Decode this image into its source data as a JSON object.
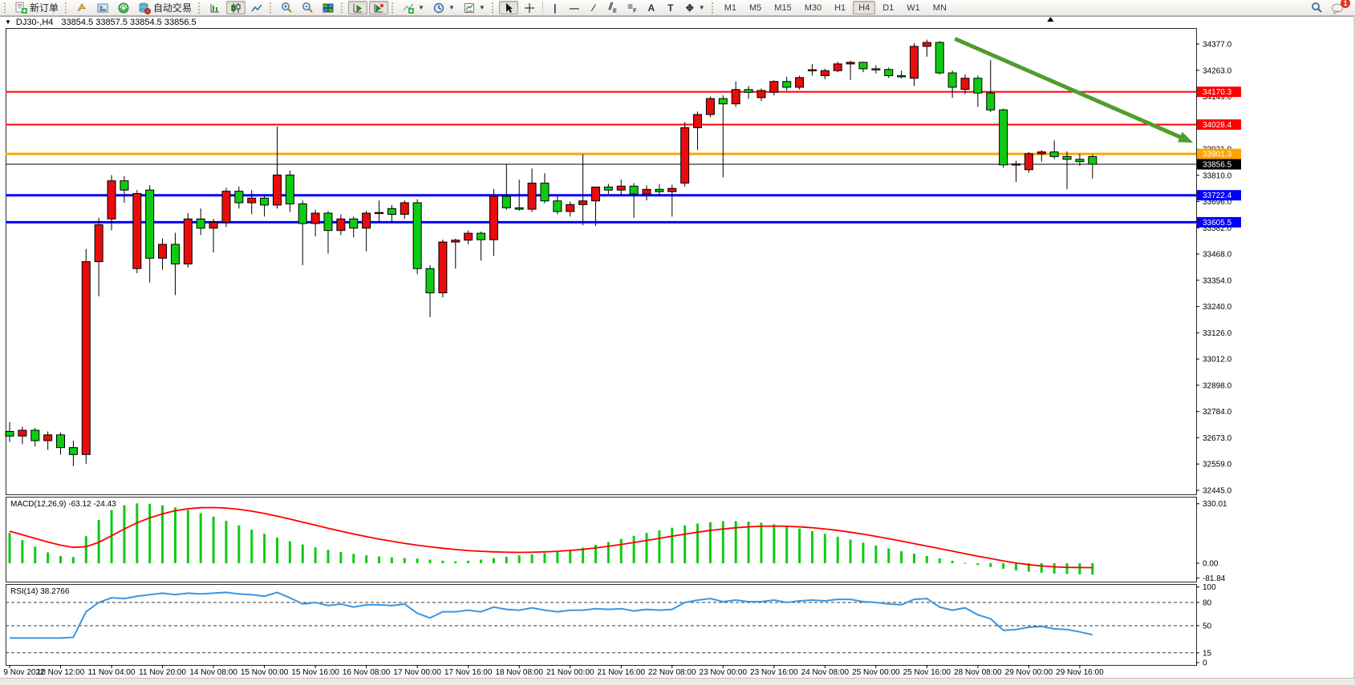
{
  "toolbar": {
    "new_order_label": "新订单",
    "autotrade_label": "自动交易",
    "timeframes": [
      "M1",
      "M5",
      "M15",
      "M30",
      "H1",
      "H4",
      "D1",
      "W1",
      "MN"
    ],
    "active_timeframe": "H4",
    "notification_count": "1",
    "icon_names": [
      "new-order-icon",
      "launcher-icon",
      "terminal-icon",
      "signal-icon",
      "autotrade-icon",
      "bar-chart-icon",
      "candlestick-chart-icon",
      "line-chart-icon",
      "zoom-in-icon",
      "zoom-out-icon",
      "tile-windows-icon",
      "auto-scroll-icon",
      "chart-shift-icon",
      "indicators-icon",
      "periods-icon",
      "templates-icon",
      "cursor-icon",
      "crosshair-icon",
      "vertical-line-icon",
      "horizontal-line-icon",
      "trendline-icon",
      "channel-icon",
      "fibonacci-icon",
      "text-icon",
      "label-icon",
      "arrows-icon",
      "search-icon",
      "chat-bubble-icon"
    ]
  },
  "title_bar": {
    "dropdown_icon": "▼",
    "symbol_period": "DJ30-,H4",
    "ohlc": "33854.5 33857.5 33854.5 33856.5"
  },
  "chart_data": {
    "type": "candlestick",
    "symbol": "DJ30-",
    "timeframe": "H4",
    "current_ohlc": {
      "open": 33854.5,
      "high": 33857.5,
      "low": 33854.5,
      "close": 33856.5
    },
    "price_axis_ticks": [
      34377.0,
      34263.0,
      34149.0,
      34035.0,
      33921.0,
      33810.0,
      33696.0,
      33582.0,
      33468.0,
      33354.0,
      33240.0,
      33126.0,
      33012.0,
      32898.0,
      32784.0,
      32673.0,
      32559.0,
      32445.0
    ],
    "time_labels": [
      "9 Nov 2022",
      "10 Nov 12:00",
      "11 Nov 04:00",
      "11 Nov 20:00",
      "14 Nov 08:00",
      "15 Nov 00:00",
      "15 Nov 16:00",
      "16 Nov 08:00",
      "17 Nov 00:00",
      "17 Nov 16:00",
      "18 Nov 08:00",
      "21 Nov 00:00",
      "21 Nov 16:00",
      "22 Nov 08:00",
      "23 Nov 00:00",
      "23 Nov 16:00",
      "24 Nov 08:00",
      "25 Nov 00:00",
      "25 Nov 16:00",
      "28 Nov 08:00",
      "29 Nov 00:00",
      "29 Nov 16:00"
    ],
    "candles_per_time_label": 4,
    "colors": {
      "up": "#e80c0c",
      "down": "#0ecb12",
      "wick": "#000000",
      "background": "#ffffff",
      "bid_line": "#000000",
      "macd_histogram": "#0ecb12",
      "macd_signal": "#ff0000",
      "rsi_line": "#3a96e0",
      "arrow": "#4f9d2d"
    },
    "candles": [
      [
        32700,
        32740,
        32655,
        32680
      ],
      [
        32680,
        32720,
        32645,
        32705
      ],
      [
        32705,
        32715,
        32635,
        32660
      ],
      [
        32660,
        32700,
        32620,
        32685
      ],
      [
        32685,
        32695,
        32600,
        32630
      ],
      [
        32630,
        32660,
        32550,
        32600
      ],
      [
        32600,
        33490,
        32560,
        33435
      ],
      [
        33435,
        33625,
        33285,
        33595
      ],
      [
        33620,
        33810,
        33570,
        33785
      ],
      [
        33785,
        33805,
        33690,
        33745
      ],
      [
        33405,
        33745,
        33385,
        33730
      ],
      [
        33745,
        33765,
        33345,
        33450
      ],
      [
        33450,
        33535,
        33400,
        33510
      ],
      [
        33510,
        33560,
        33290,
        33425
      ],
      [
        33425,
        33645,
        33410,
        33620
      ],
      [
        33620,
        33665,
        33550,
        33580
      ],
      [
        33580,
        33620,
        33475,
        33605
      ],
      [
        33605,
        33755,
        33585,
        33740
      ],
      [
        33740,
        33760,
        33665,
        33690
      ],
      [
        33690,
        33745,
        33640,
        33710
      ],
      [
        33710,
        33720,
        33630,
        33680
      ],
      [
        33680,
        34020,
        33665,
        33810
      ],
      [
        33810,
        33830,
        33650,
        33685
      ],
      [
        33685,
        33700,
        33420,
        33600
      ],
      [
        33600,
        33660,
        33545,
        33645
      ],
      [
        33645,
        33655,
        33470,
        33570
      ],
      [
        33570,
        33640,
        33550,
        33620
      ],
      [
        33620,
        33630,
        33540,
        33580
      ],
      [
        33580,
        33655,
        33480,
        33645
      ],
      [
        33645,
        33700,
        33610,
        33648
      ],
      [
        33665,
        33680,
        33600,
        33640
      ],
      [
        33640,
        33700,
        33620,
        33690
      ],
      [
        33690,
        33705,
        33380,
        33405
      ],
      [
        33405,
        33420,
        33195,
        33300
      ],
      [
        33300,
        33530,
        33280,
        33520
      ],
      [
        33520,
        33535,
        33405,
        33528
      ],
      [
        33528,
        33570,
        33510,
        33558
      ],
      [
        33558,
        33565,
        33440,
        33530
      ],
      [
        33530,
        33750,
        33460,
        33718
      ],
      [
        33718,
        33855,
        33660,
        33668
      ],
      [
        33668,
        33790,
        33655,
        33662
      ],
      [
        33662,
        33838,
        33650,
        33775
      ],
      [
        33775,
        33818,
        33688,
        33698
      ],
      [
        33698,
        33720,
        33640,
        33652
      ],
      [
        33652,
        33695,
        33630,
        33682
      ],
      [
        33682,
        33900,
        33592,
        33698
      ],
      [
        33698,
        33712,
        33590,
        33758
      ],
      [
        33758,
        33772,
        33728,
        33745
      ],
      [
        33745,
        33790,
        33718,
        33762
      ],
      [
        33762,
        33775,
        33625,
        33728
      ],
      [
        33728,
        33765,
        33700,
        33748
      ],
      [
        33748,
        33770,
        33722,
        33738
      ],
      [
        33738,
        33768,
        33630,
        33752
      ],
      [
        33775,
        34040,
        33760,
        34015
      ],
      [
        34015,
        34085,
        33918,
        34072
      ],
      [
        34072,
        34150,
        34060,
        34141
      ],
      [
        34141,
        34155,
        33800,
        34118
      ],
      [
        34118,
        34215,
        34105,
        34180
      ],
      [
        34180,
        34195,
        34140,
        34168
      ],
      [
        34145,
        34185,
        34130,
        34176
      ],
      [
        34168,
        34220,
        34155,
        34215
      ],
      [
        34215,
        34235,
        34175,
        34190
      ],
      [
        34190,
        34240,
        34180,
        34232
      ],
      [
        34265,
        34290,
        34240,
        34266
      ],
      [
        34240,
        34270,
        34225,
        34262
      ],
      [
        34262,
        34300,
        34255,
        34291
      ],
      [
        34291,
        34305,
        34222,
        34298
      ],
      [
        34298,
        34300,
        34255,
        34270
      ],
      [
        34270,
        34285,
        34250,
        34267
      ],
      [
        34267,
        34275,
        34230,
        34240
      ],
      [
        34240,
        34262,
        34228,
        34236
      ],
      [
        34229,
        34380,
        34196,
        34367
      ],
      [
        34367,
        34396,
        34322,
        34384
      ],
      [
        34384,
        34390,
        34245,
        34252
      ],
      [
        34252,
        34262,
        34144,
        34190
      ],
      [
        34181,
        34245,
        34160,
        34229
      ],
      [
        34229,
        34240,
        34105,
        34165
      ],
      [
        34165,
        34308,
        34082,
        34092
      ],
      [
        34092,
        34098,
        33842,
        33854
      ],
      [
        33854,
        33872,
        33780,
        33858
      ],
      [
        33833,
        33910,
        33820,
        33902
      ],
      [
        33902,
        33918,
        33868,
        33910
      ],
      [
        33910,
        33960,
        33880,
        33890
      ],
      [
        33890,
        33912,
        33748,
        33878
      ],
      [
        33878,
        33902,
        33850,
        33868
      ],
      [
        33890,
        33898,
        33795,
        33856.5
      ]
    ],
    "horizontal_lines": [
      {
        "price": 34170.3,
        "label": "34170.3",
        "color": "#ff0000",
        "width": 2
      },
      {
        "price": 34028.4,
        "label": "34028.4",
        "color": "#ff0000",
        "width": 2
      },
      {
        "price": 33901.3,
        "label": "33901.3",
        "color": "#ffa500",
        "width": 3
      },
      {
        "price": 33722.4,
        "label": "33722.4",
        "color": "#0000ff",
        "width": 3
      },
      {
        "price": 33605.5,
        "label": "33605.5",
        "color": "#0000ff",
        "width": 3
      }
    ],
    "bid_line": {
      "price": 33856.5,
      "label": "33856.5",
      "color": "#000000"
    },
    "trend_arrow": {
      "start_candle": 74.2,
      "start_price": 34400,
      "end_candle": 92.9,
      "end_price": 33950
    },
    "shift_marker_candle": 81.7,
    "indicators": {
      "macd": {
        "label": "MACD(12,26,9)",
        "current_values": "-63.12 -24.43",
        "axis_labels": [
          330.01,
          0.0,
          -81.84
        ],
        "histogram": [
          168,
          128,
          92,
          60,
          40,
          34,
          150,
          240,
          295,
          322,
          332,
          330,
          322,
          310,
          295,
          278,
          258,
          235,
          210,
          186,
          163,
          142,
          122,
          104,
          88,
          74,
          62,
          52,
          44,
          38,
          33,
          29,
          26,
          20,
          14,
          11,
          14,
          20,
          28,
          36,
          44,
          50,
          56,
          62,
          72,
          86,
          102,
          118,
          135,
          152,
          168,
          183,
          197,
          210,
          220,
          228,
          233,
          234,
          231,
          225,
          216,
          205,
          192,
          178,
          163,
          147,
          131,
          114,
          98,
          82,
          67,
          53,
          40,
          27,
          14,
          2,
          -10,
          -21,
          -31,
          -40,
          -47,
          -53,
          -57,
          -60,
          -62,
          -63.12
        ],
        "signal": [
          178,
          158,
          138,
          118,
          100,
          88,
          92,
          116,
          152,
          190,
          224,
          252,
          274,
          291,
          302,
          308,
          309,
          306,
          299,
          289,
          276,
          261,
          245,
          228,
          211,
          194,
          178,
          162,
          148,
          134,
          122,
          110,
          100,
          91,
          83,
          76,
          70,
          66,
          63,
          61,
          60,
          61,
          63,
          66,
          71,
          77,
          85,
          94,
          104,
          115,
          126,
          138,
          150,
          161,
          172,
          182,
          190,
          197,
          202,
          205,
          206,
          205,
          202,
          197,
          190,
          182,
          172,
          161,
          149,
          136,
          123,
          109,
          95,
          81,
          67,
          53,
          39,
          26,
          13,
          1,
          -8,
          -15,
          -20,
          -23,
          -24,
          -24.43
        ]
      },
      "rsi": {
        "label": "RSI(14)",
        "current_value": "38.2766",
        "levels": [
          80,
          50,
          15
        ],
        "axis_labels": [
          100,
          80,
          50,
          15,
          0
        ],
        "values": [
          34,
          34,
          34,
          34,
          34,
          35,
          68,
          80,
          86,
          85,
          88,
          90,
          92,
          90,
          92,
          91,
          92,
          93,
          91,
          90,
          88,
          93,
          86,
          78,
          80,
          76,
          78,
          74,
          77,
          77,
          76,
          78,
          66,
          60,
          68,
          68,
          70,
          68,
          74,
          71,
          70,
          73,
          70,
          68,
          70,
          70,
          72,
          71,
          72,
          69,
          71,
          70,
          71,
          80,
          83,
          85,
          81,
          83,
          81,
          81,
          83,
          80,
          82,
          83,
          82,
          84,
          84,
          81,
          80,
          78,
          77,
          84,
          85,
          74,
          70,
          73,
          64,
          59,
          44,
          45,
          48,
          49,
          46,
          45,
          42,
          38.28
        ]
      }
    }
  }
}
